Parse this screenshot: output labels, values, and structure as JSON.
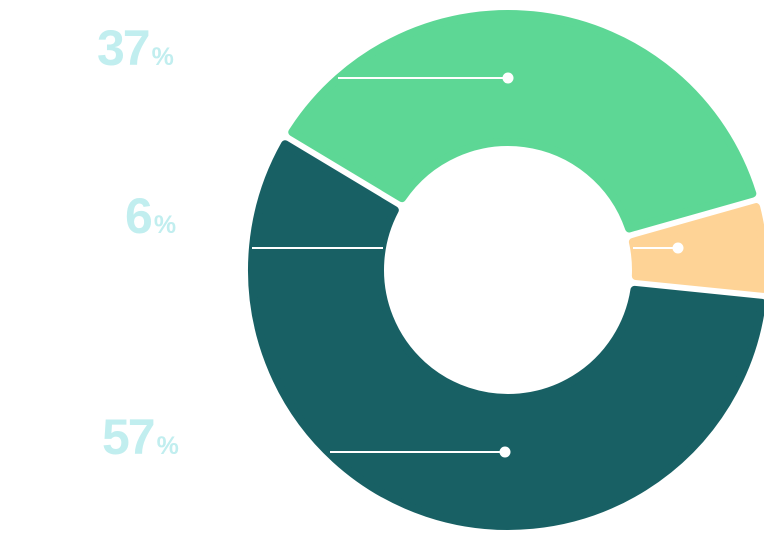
{
  "chart_data": {
    "type": "pie",
    "variant": "donut",
    "categories": [
      "",
      "",
      ""
    ],
    "values": [
      37,
      6,
      57
    ],
    "labels": [
      {
        "value": "37",
        "unit": "%"
      },
      {
        "value": "6",
        "unit": "%"
      },
      {
        "value": "57",
        "unit": "%"
      }
    ],
    "colors": [
      "#5dd795",
      "#fed396",
      "#186064"
    ],
    "label_color": "#c1eeef",
    "connector_color": "#ffffff",
    "legend": "none"
  }
}
